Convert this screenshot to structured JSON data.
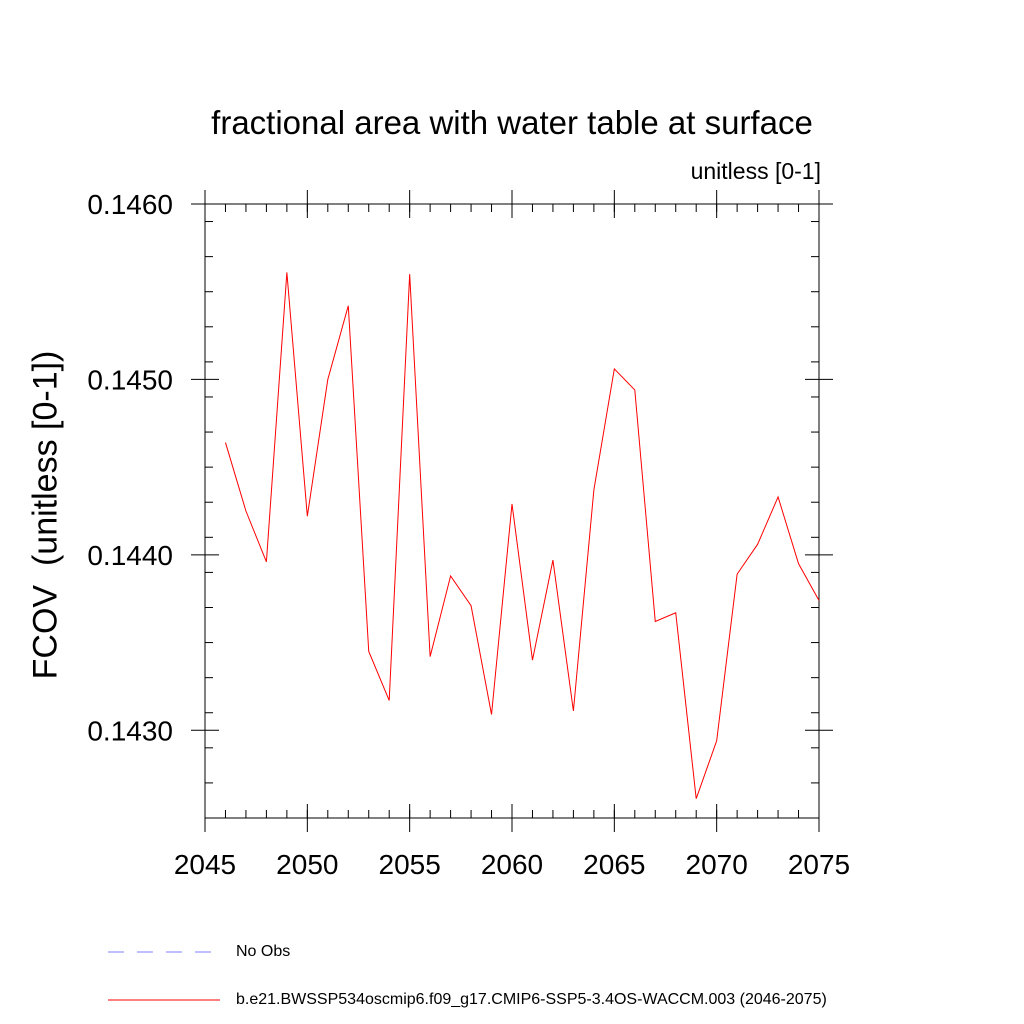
{
  "chart_data": {
    "type": "line",
    "title": "fractional area with water table at surface",
    "units_label": "unitless [0-1]",
    "ylabel": "FCOV  (unitless [0-1])",
    "xlabel": "",
    "xlim": [
      2045,
      2075
    ],
    "ylim": [
      0.1425,
      0.146
    ],
    "x_major_ticks": [
      2045,
      2050,
      2055,
      2060,
      2065,
      2070,
      2075
    ],
    "x_tick_labels": [
      "2045",
      "2050",
      "2055",
      "2060",
      "2065",
      "2070",
      "2075"
    ],
    "y_major_ticks": [
      0.143,
      0.144,
      0.145,
      0.146
    ],
    "y_tick_labels": [
      "0.1430",
      "0.1440",
      "0.1450",
      "0.1460"
    ],
    "y_minor_step": 0.0002,
    "x_minor_step": 1,
    "grid": false,
    "series": [
      {
        "name": "b.e21.BWSSP534oscmip6.f09_g17.CMIP6-SSP5-3.4OS-WACCM.003 (2046-2075)",
        "color": "#ff0000",
        "style": "solid",
        "x": [
          2046,
          2047,
          2048,
          2049,
          2050,
          2051,
          2052,
          2053,
          2054,
          2055,
          2056,
          2057,
          2058,
          2059,
          2060,
          2061,
          2062,
          2063,
          2064,
          2065,
          2066,
          2067,
          2068,
          2069,
          2070,
          2071,
          2072,
          2073,
          2074,
          2075
        ],
        "values": [
          0.14464,
          0.14425,
          0.14396,
          0.14561,
          0.14422,
          0.145,
          0.14542,
          0.14345,
          0.14317,
          0.1456,
          0.14342,
          0.14388,
          0.14371,
          0.14309,
          0.14429,
          0.1434,
          0.14397,
          0.14311,
          0.14437,
          0.14506,
          0.14494,
          0.14362,
          0.14367,
          0.14261,
          0.14294,
          0.14389,
          0.14406,
          0.14433,
          0.14395,
          0.14374
        ]
      }
    ],
    "legend": [
      {
        "label": "No Obs",
        "color": "#7f7fff",
        "style": "dashed"
      },
      {
        "label": "b.e21.BWSSP534oscmip6.f09_g17.CMIP6-SSP5-3.4OS-WACCM.003 (2046-2075)",
        "color": "#ff0000",
        "style": "solid"
      }
    ]
  }
}
